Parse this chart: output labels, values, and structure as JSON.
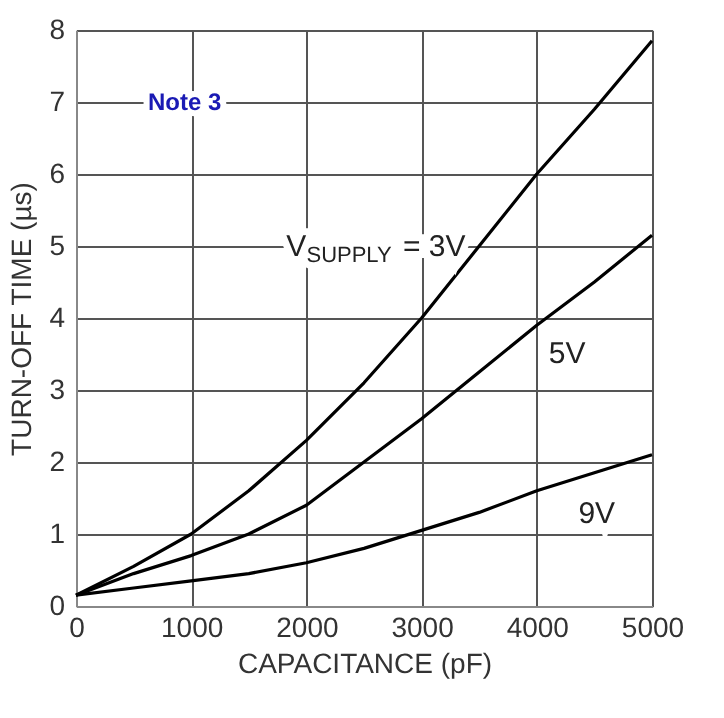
{
  "chart_data": {
    "type": "line",
    "xlabel": "CAPACITANCE (pF)",
    "ylabel": "TURN-OFF TIME (µs)",
    "xlim": [
      0,
      5000
    ],
    "xticks": [
      0,
      1000,
      2000,
      3000,
      4000,
      5000
    ],
    "ylim": [
      0,
      8
    ],
    "yticks": [
      0,
      1,
      2,
      3,
      4,
      5,
      6,
      7,
      8
    ],
    "grid": true,
    "legend": false,
    "marker": "none",
    "line_style": "solid",
    "annotations": [
      "Note 3"
    ],
    "series": [
      {
        "name": "V$_{SUPPLY}$ = 3V",
        "color": "#000000",
        "x": [
          0,
          500,
          1000,
          1500,
          2000,
          2500,
          3000,
          3500,
          4000,
          4500,
          5000
        ],
        "values": [
          0.15,
          0.55,
          1.0,
          1.6,
          2.3,
          3.1,
          4.0,
          5.0,
          6.0,
          6.9,
          7.85
        ]
      },
      {
        "name": "5V",
        "color": "#000000",
        "x": [
          0,
          500,
          1000,
          1500,
          2000,
          2500,
          3000,
          3500,
          4000,
          4500,
          5000
        ],
        "values": [
          0.15,
          0.45,
          0.7,
          1.0,
          1.4,
          2.0,
          2.6,
          3.25,
          3.9,
          4.5,
          5.15
        ]
      },
      {
        "name": "9V",
        "color": "#000000",
        "x": [
          0,
          500,
          1000,
          1500,
          2000,
          2500,
          3000,
          3500,
          4000,
          4500,
          5000
        ],
        "values": [
          0.15,
          0.25,
          0.35,
          0.45,
          0.6,
          0.8,
          1.05,
          1.3,
          1.6,
          1.85,
          2.1
        ]
      }
    ]
  }
}
